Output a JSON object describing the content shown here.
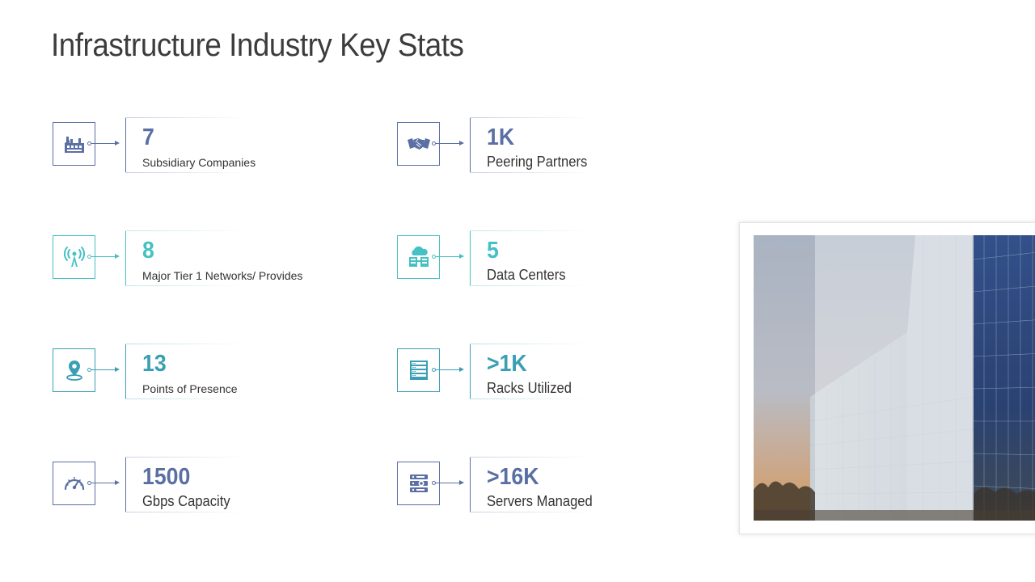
{
  "title": "Infrastructure Industry Key Stats",
  "stats": [
    {
      "value": "7",
      "label": "Subsidiary Companies",
      "icon": "factory-icon",
      "accent": "#5a6fa3",
      "value_color": "#5a6fa3"
    },
    {
      "value": "1K",
      "label": "Peering Partners",
      "icon": "handshake-icon",
      "accent": "#5a6fa3",
      "value_color": "#5a6fa3"
    },
    {
      "value": "8",
      "label": "Major Tier 1 Networks/ Provides",
      "icon": "antenna-tower-icon",
      "accent": "#45c1c4",
      "value_color": "#45c1c4"
    },
    {
      "value": "5",
      "label": "Data Centers",
      "icon": "cloud-server-icon",
      "accent": "#45c1c4",
      "value_color": "#45c1c4"
    },
    {
      "value": "13",
      "label": "Points of Presence",
      "icon": "map-pin-icon",
      "accent": "#3a9fb5",
      "value_color": "#3a9fb5"
    },
    {
      "value": ">1K",
      "label": "Racks Utilized",
      "icon": "server-rack-icon",
      "accent": "#3a9fb5",
      "value_color": "#3a9fb5"
    },
    {
      "value": "1500",
      "label": "Gbps Capacity",
      "icon": "speedometer-icon",
      "accent": "#5a6fa3",
      "value_color": "#5a6fa3"
    },
    {
      "value": ">16K",
      "label": "Servers Managed",
      "icon": "server-stack-icon",
      "accent": "#5a6fa3",
      "value_color": "#5a6fa3"
    }
  ],
  "photo": {
    "icon": "building-photo"
  }
}
